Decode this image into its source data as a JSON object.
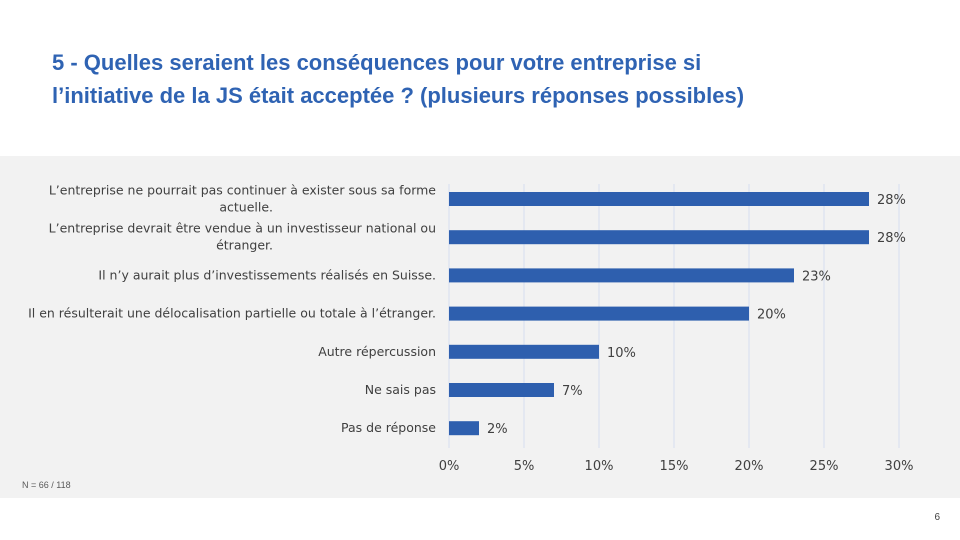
{
  "slide": {
    "title_line1": "5 - Quelles seraient les conséquences pour votre entreprise si",
    "title_line2": "l’initiative de la JS était acceptée ? (plusieurs réponses possibles)",
    "footnote": "N = 66 / 118",
    "page_number": "6"
  },
  "colors": {
    "title": "#2f63b3",
    "bar": "#2e5fae",
    "panel": "#f2f2f2",
    "grid": "#d5dff0"
  },
  "chart_data": {
    "type": "bar",
    "orientation": "horizontal",
    "title": "",
    "xlabel": "",
    "ylabel": "",
    "xlim": [
      0,
      30
    ],
    "x_ticks": [
      0,
      5,
      10,
      15,
      20,
      25,
      30
    ],
    "x_tick_labels": [
      "0%",
      "5%",
      "10%",
      "15%",
      "20%",
      "25%",
      "30%"
    ],
    "grid": "vertical",
    "categories": [
      [
        "L’entreprise ne pourrait pas continuer à exister sous sa forme",
        "actuelle."
      ],
      [
        "L’entreprise devrait être vendue à un investisseur national ou",
        "étranger."
      ],
      [
        "Il n’y aurait plus d’investissements réalisés en Suisse."
      ],
      [
        "Il en résulterait une délocalisation partielle ou totale à l’étranger."
      ],
      [
        "Autre répercussion"
      ],
      [
        "Ne sais pas"
      ],
      [
        "Pas de réponse"
      ]
    ],
    "values": [
      28,
      28,
      23,
      20,
      10,
      7,
      2
    ],
    "value_labels": [
      "28%",
      "28%",
      "23%",
      "20%",
      "10%",
      "7%",
      "2%"
    ]
  }
}
